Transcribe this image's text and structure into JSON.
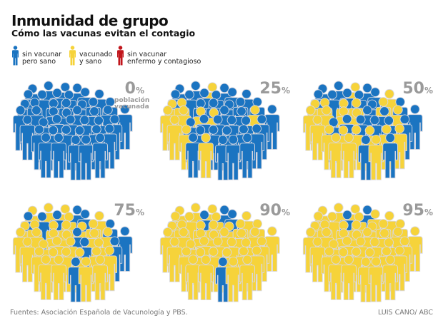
{
  "header": {
    "title": "Inmunidad de grupo",
    "subtitle": "Cómo las vacunas evitan el contagio"
  },
  "colors": {
    "unvaccinated_healthy": "#1b74c1",
    "vaccinated": "#f6d33a",
    "infected": "#c1161c",
    "percent_text": "#9a9a9a"
  },
  "legend": [
    {
      "label": "sin vacunar\npero sano",
      "color_key": "unvaccinated_healthy",
      "icon": "person-icon"
    },
    {
      "label": "vacunado\ny sano",
      "color_key": "vaccinated",
      "icon": "person-icon"
    },
    {
      "label": "sin vacunar\nenfermo y contagioso",
      "color_key": "infected",
      "icon": "person-icon"
    }
  ],
  "panels": [
    {
      "percent": 0,
      "value_label": "0",
      "unit": "%",
      "note": "población\nvacunada"
    },
    {
      "percent": 25,
      "value_label": "25",
      "unit": "%"
    },
    {
      "percent": 50,
      "value_label": "50",
      "unit": "%"
    },
    {
      "percent": 75,
      "value_label": "75",
      "unit": "%"
    },
    {
      "percent": 90,
      "value_label": "90",
      "unit": "%"
    },
    {
      "percent": 95,
      "value_label": "95",
      "unit": "%"
    }
  ],
  "footer": {
    "source": "Fuentes: Asociación Española de Vacunología y PBS.",
    "credit": "LUIS CANO/ ABC"
  }
}
